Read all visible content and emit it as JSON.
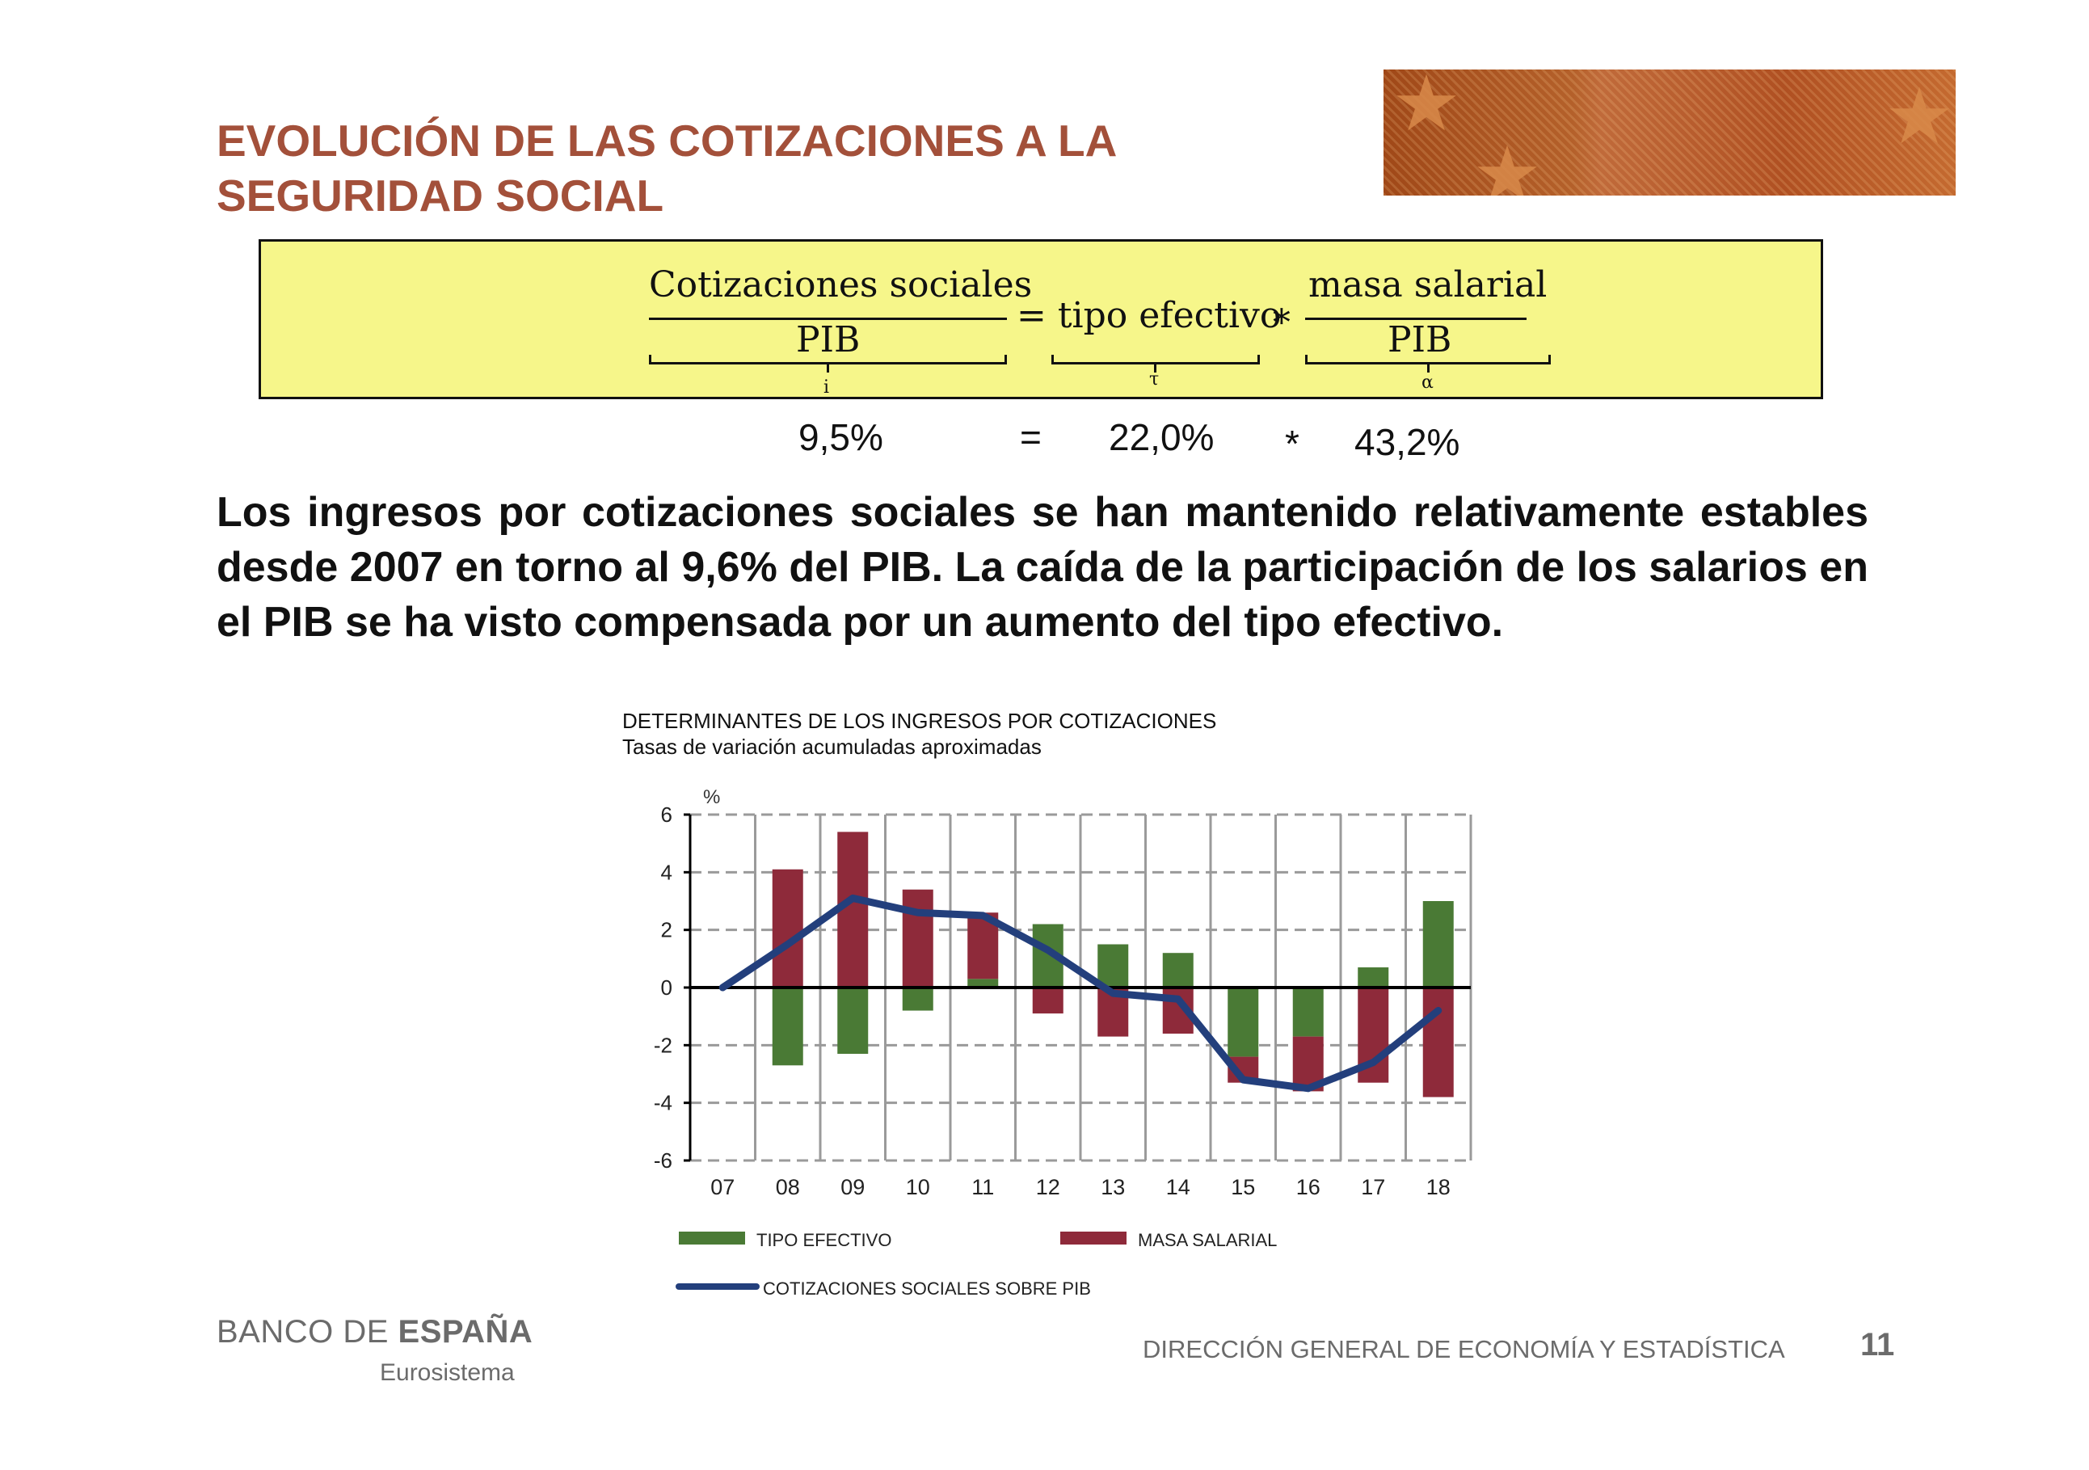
{
  "title": {
    "line1": "EVOLUCIÓN DE LAS COTIZACIONES A LA",
    "line2": "SEGURIDAD SOCIAL"
  },
  "formula": {
    "numerator_left": "Cotizaciones sociales",
    "denominator_left": "PIB",
    "equals": "= tipo efectivo",
    "times": "∗",
    "numerator_right": "masa salarial",
    "denominator_right": "PIB",
    "symbol_left": "i",
    "symbol_mid": "τ",
    "symbol_right": "α"
  },
  "values": {
    "left": "9,5%",
    "equals": "=",
    "mid": "22,0%",
    "times": "*",
    "right": "43,2%"
  },
  "paragraph": "Los ingresos por cotizaciones sociales se han mantenido relativamente estables desde 2007 en torno al 9,6% del PIB. La caída de la participación de los salarios en el PIB se ha visto compensada por un aumento del tipo efectivo.",
  "chart_title": {
    "line1": "DETERMINANTES DE LOS INGRESOS POR COTIZACIONES",
    "line2": "Tasas de variación acumuladas aproximadas"
  },
  "chart_data": {
    "type": "bar",
    "title": "DETERMINANTES DE LOS INGRESOS POR COTIZACIONES",
    "subtitle": "Tasas de variación acumuladas aproximadas",
    "unit_label": "%",
    "categories": [
      "07",
      "08",
      "09",
      "10",
      "11",
      "12",
      "13",
      "14",
      "15",
      "16",
      "17",
      "18"
    ],
    "ylim": [
      -6,
      6
    ],
    "yticks": [
      6,
      4,
      2,
      0,
      -2,
      -4,
      -6
    ],
    "grid": true,
    "stacked": true,
    "series": [
      {
        "name": "TIPO EFECTIVO",
        "type": "bar",
        "color": "#4a7a35",
        "values": [
          0,
          -2.7,
          -2.3,
          -0.8,
          0.3,
          2.2,
          1.5,
          1.2,
          -2.4,
          -1.7,
          0.7,
          3.0
        ]
      },
      {
        "name": "MASA SALARIAL",
        "type": "bar",
        "color": "#8e2a3a",
        "values": [
          0,
          4.1,
          5.4,
          3.4,
          2.3,
          -0.9,
          -1.7,
          -1.6,
          -0.9,
          -1.9,
          -3.3,
          -3.8
        ]
      },
      {
        "name": "COTIZACIONES SOCIALES SOBRE PIB",
        "type": "line",
        "color": "#233f7c",
        "values": [
          0,
          1.5,
          3.1,
          2.6,
          2.5,
          1.3,
          -0.2,
          -0.4,
          -3.2,
          -3.5,
          -2.6,
          -0.8
        ]
      }
    ],
    "legend_position": "bottom"
  },
  "footer": {
    "bank_light": "BANCO DE ",
    "bank_bold": "ESPAÑA",
    "eurosistema": "Eurosistema",
    "direction": "DIRECCIÓN GENERAL DE ECONOMÍA Y ESTADÍSTICA",
    "page": "11"
  }
}
